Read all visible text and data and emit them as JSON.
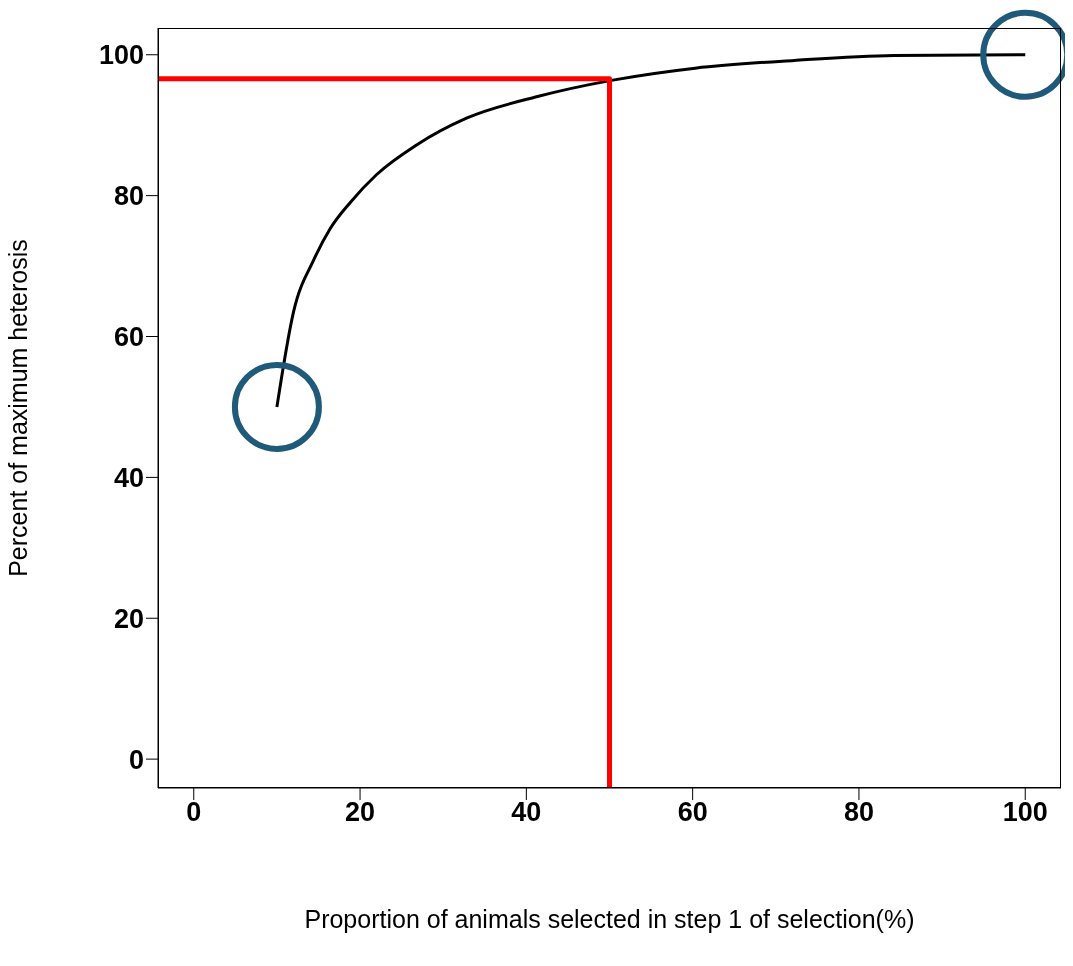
{
  "chart_data": {
    "type": "line",
    "xlabel": "Proportion of animals selected in step 1 of selection(%)",
    "ylabel": "Percent of maximum heterosis",
    "xlim": [
      -4.3,
      104.3
    ],
    "ylim": [
      -4.1,
      103.8
    ],
    "xticks": [
      0,
      20,
      40,
      60,
      80,
      100
    ],
    "yticks": [
      0,
      20,
      40,
      60,
      80,
      100
    ],
    "marker": "none",
    "line_style": "solid",
    "series": [
      {
        "color": "#000000",
        "x": [
          10,
          12,
          14.4,
          16.4,
          18.8,
          22,
          26.8,
          32.8,
          41.1,
          50.4,
          60.3,
          72.2,
          84.2,
          100
        ],
        "values": [
          50,
          63.5,
          70.8,
          75.3,
          79,
          83,
          87.2,
          91,
          94,
          96.4,
          98.1,
          99.2,
          99.9,
          100
        ]
      },
      {
        "color": "#ff0000",
        "x": [
          -4.3,
          50,
          50
        ],
        "values": [
          96.6,
          96.6,
          -4.1
        ]
      }
    ]
  }
}
